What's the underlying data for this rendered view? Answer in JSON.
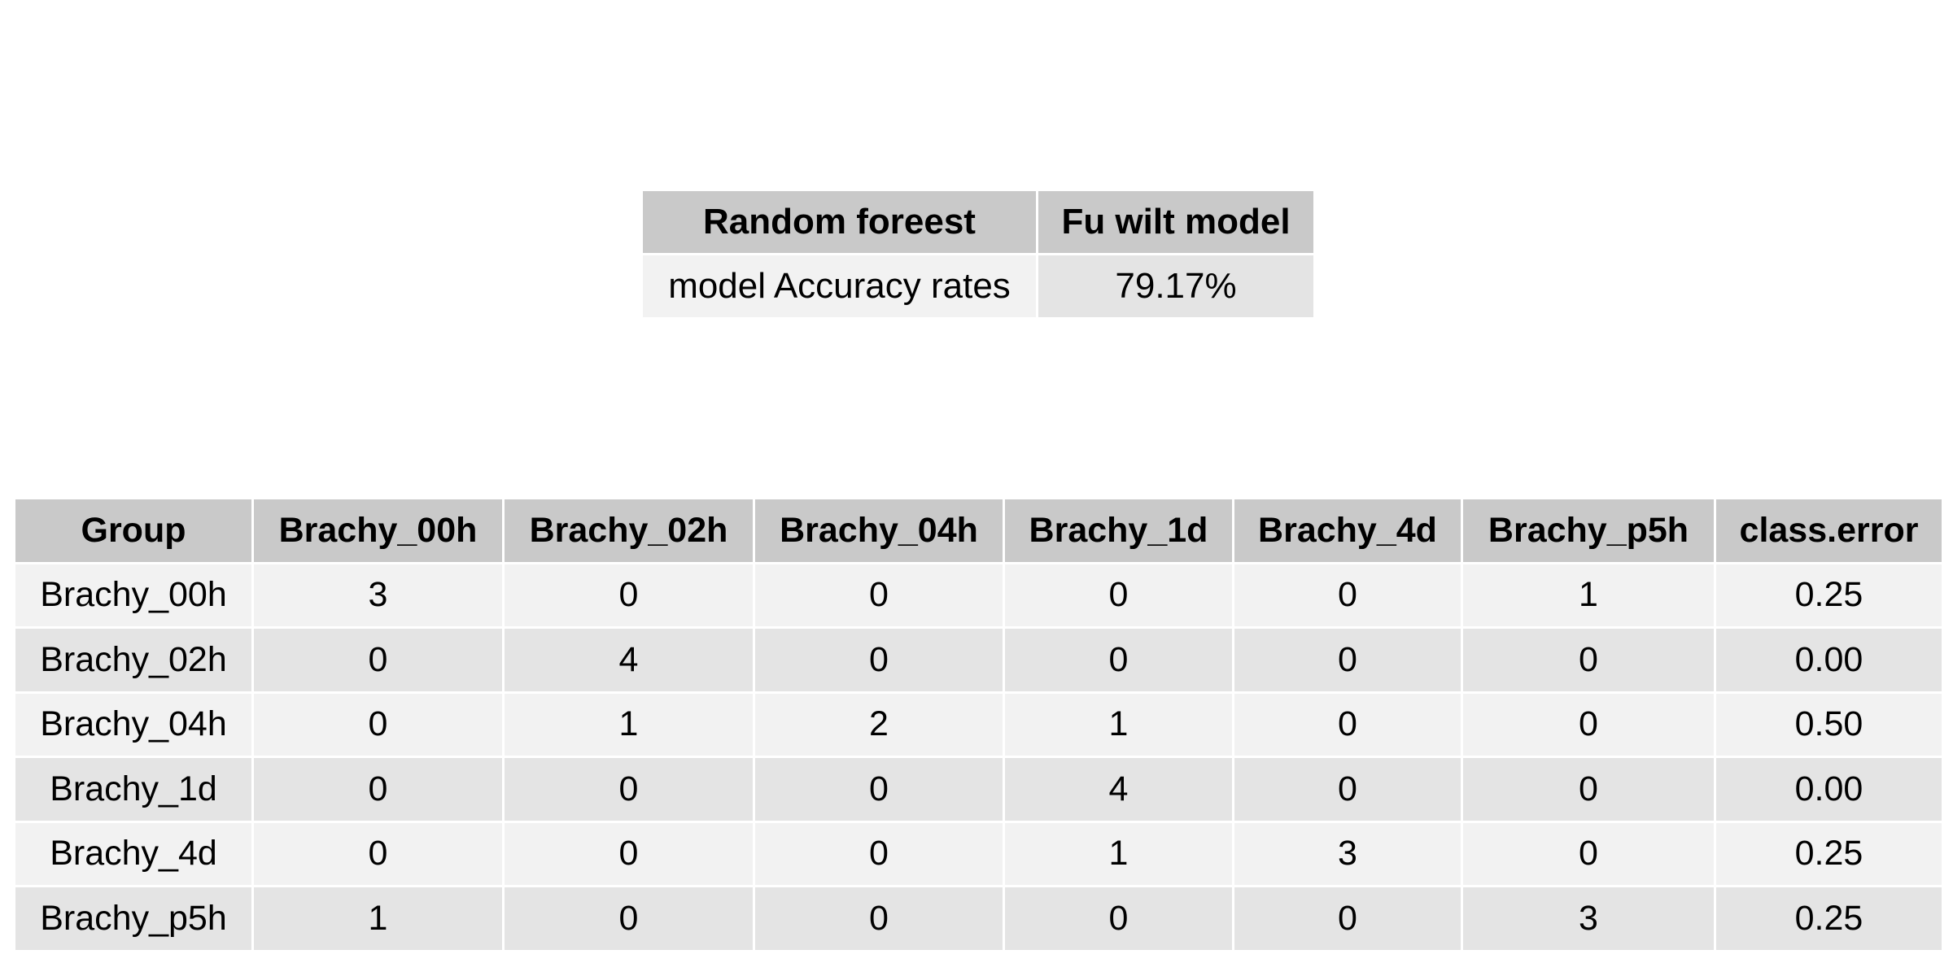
{
  "summary": {
    "headers": [
      "Random foreest",
      "Fu wilt model"
    ],
    "row": {
      "label": "model Accuracy rates",
      "value": "79.17%"
    }
  },
  "confusion": {
    "headers": [
      "Group",
      "Brachy_00h",
      "Brachy_02h",
      "Brachy_04h",
      "Brachy_1d",
      "Brachy_4d",
      "Brachy_p5h",
      "class.error"
    ],
    "rows": [
      [
        "Brachy_00h",
        "3",
        "0",
        "0",
        "0",
        "0",
        "1",
        "0.25"
      ],
      [
        "Brachy_02h",
        "0",
        "4",
        "0",
        "0",
        "0",
        "0",
        "0.00"
      ],
      [
        "Brachy_04h",
        "0",
        "1",
        "2",
        "1",
        "0",
        "0",
        "0.50"
      ],
      [
        "Brachy_1d",
        "0",
        "0",
        "0",
        "4",
        "0",
        "0",
        "0.00"
      ],
      [
        "Brachy_4d",
        "0",
        "0",
        "0",
        "1",
        "3",
        "0",
        "0.25"
      ],
      [
        "Brachy_p5h",
        "1",
        "0",
        "0",
        "0",
        "0",
        "3",
        "0.25"
      ]
    ]
  }
}
